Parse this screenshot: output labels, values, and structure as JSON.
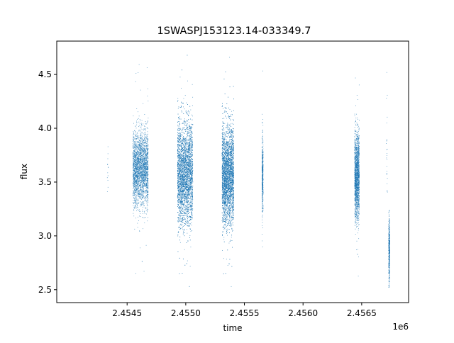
{
  "chart_data": {
    "type": "scatter",
    "title": "1SWASPJ153123.14-033349.7",
    "xlabel": "time",
    "ylabel": "flux",
    "x_offset_label": "1e6",
    "xlim": [
      2.4539,
      2.4569
    ],
    "ylim": [
      2.38,
      4.81
    ],
    "x_ticks": [
      2.4545,
      2.455,
      2.4555,
      2.456,
      2.4565
    ],
    "x_tick_labels": [
      "2.4545",
      "2.4550",
      "2.4555",
      "2.4560",
      "2.4565"
    ],
    "y_ticks": [
      2.5,
      3.0,
      3.5,
      4.0,
      4.5
    ],
    "y_tick_labels": [
      "2.5",
      "3.0",
      "3.5",
      "4.0",
      "4.5"
    ],
    "grid": false,
    "legend": "none",
    "marker_color": "#1f77b4",
    "clusters": [
      {
        "x_range": [
          2.45433,
          2.45434
        ],
        "y_center": 3.62,
        "y_spread": 0.15,
        "y_min": 3.33,
        "y_max": 4.32,
        "points": 14
      },
      {
        "x_range": [
          2.45455,
          2.45468
        ],
        "y_center": 3.62,
        "y_spread": 0.17,
        "y_min": 2.52,
        "y_max": 4.65,
        "points": 2600
      },
      {
        "x_range": [
          2.45493,
          2.45506
        ],
        "y_center": 3.58,
        "y_spread": 0.24,
        "y_min": 2.49,
        "y_max": 4.7,
        "points": 4200
      },
      {
        "x_range": [
          2.45531,
          2.45541
        ],
        "y_center": 3.56,
        "y_spread": 0.23,
        "y_min": 2.49,
        "y_max": 4.68,
        "points": 4000
      },
      {
        "x_range": [
          2.45565,
          2.45566
        ],
        "y_center": 3.56,
        "y_spread": 0.18,
        "y_min": 2.7,
        "y_max": 4.55,
        "points": 450
      },
      {
        "x_range": [
          2.45644,
          2.45648
        ],
        "y_center": 3.55,
        "y_spread": 0.2,
        "y_min": 2.59,
        "y_max": 4.68,
        "points": 1700
      },
      {
        "x_range": [
          2.45671,
          2.45672
        ],
        "y_center": 3.78,
        "y_spread": 0.3,
        "y_min": 3.05,
        "y_max": 4.53,
        "points": 25
      },
      {
        "x_range": [
          2.45673,
          2.45674
        ],
        "y_center": 2.88,
        "y_spread": 0.15,
        "y_min": 2.51,
        "y_max": 3.25,
        "points": 420
      }
    ]
  }
}
